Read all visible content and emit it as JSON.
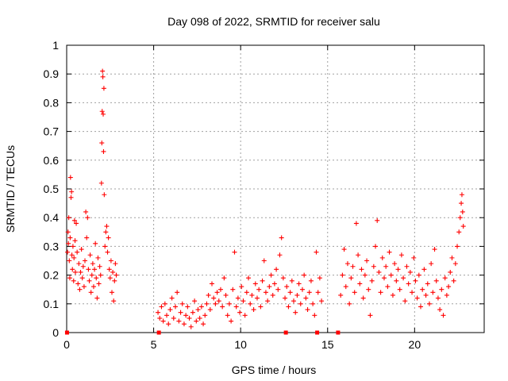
{
  "chart_data": {
    "type": "scatter",
    "title": "Day 098 of 2022, SRMTID for receiver salu",
    "xlabel": "GPS time / hours",
    "ylabel": "SRMTID / TECUs",
    "xlim": [
      0,
      24
    ],
    "ylim": [
      0,
      1
    ],
    "xticks": [
      0,
      5,
      10,
      15,
      20
    ],
    "xtick_labels": [
      "0",
      "5",
      "10",
      "15",
      "20"
    ],
    "yticks": [
      0,
      0.1,
      0.2,
      0.3,
      0.4,
      0.5,
      0.6,
      0.7,
      0.8,
      0.9,
      1
    ],
    "ytick_labels": [
      "0",
      "0.1",
      "0.2",
      "0.3",
      "0.4",
      "0.5",
      "0.6",
      "0.7",
      "0.8",
      "0.9",
      "1"
    ],
    "grid": true,
    "marker_color": "#ff0000",
    "series": [
      {
        "name": "SRMTID",
        "marker": "plus",
        "points": [
          [
            0.05,
            0.28
          ],
          [
            0.08,
            0.35
          ],
          [
            0.1,
            0.31
          ],
          [
            0.12,
            0.4
          ],
          [
            0.15,
            0.25
          ],
          [
            0.18,
            0.19
          ],
          [
            0.2,
            0.33
          ],
          [
            0.22,
            0.54
          ],
          [
            0.25,
            0.47
          ],
          [
            0.28,
            0.49
          ],
          [
            0.3,
            0.27
          ],
          [
            0.33,
            0.22
          ],
          [
            0.36,
            0.3
          ],
          [
            0.4,
            0.18
          ],
          [
            0.42,
            0.26
          ],
          [
            0.45,
            0.39
          ],
          [
            0.48,
            0.32
          ],
          [
            0.5,
            0.21
          ],
          [
            0.55,
            0.38
          ],
          [
            0.6,
            0.28
          ],
          [
            0.65,
            0.17
          ],
          [
            0.7,
            0.24
          ],
          [
            0.75,
            0.15
          ],
          [
            0.8,
            0.21
          ],
          [
            0.85,
            0.29
          ],
          [
            0.9,
            0.19
          ],
          [
            0.95,
            0.23
          ],
          [
            1.0,
            0.16
          ],
          [
            1.05,
            0.25
          ],
          [
            1.1,
            0.42
          ],
          [
            1.15,
            0.33
          ],
          [
            1.2,
            0.4
          ],
          [
            1.25,
            0.22
          ],
          [
            1.3,
            0.18
          ],
          [
            1.35,
            0.27
          ],
          [
            1.4,
            0.14
          ],
          [
            1.45,
            0.2
          ],
          [
            1.5,
            0.24
          ],
          [
            1.55,
            0.16
          ],
          [
            1.6,
            0.22
          ],
          [
            1.65,
            0.31
          ],
          [
            1.7,
            0.19
          ],
          [
            1.75,
            0.12
          ],
          [
            1.8,
            0.26
          ],
          [
            1.85,
            0.17
          ],
          [
            1.9,
            0.23
          ],
          [
            1.95,
            0.2
          ],
          [
            2.0,
            0.52
          ],
          [
            2.02,
            0.66
          ],
          [
            2.04,
            0.77
          ],
          [
            2.06,
            0.91
          ],
          [
            2.08,
            0.89
          ],
          [
            2.1,
            0.76
          ],
          [
            2.12,
            0.63
          ],
          [
            2.14,
            0.85
          ],
          [
            2.16,
            0.48
          ],
          [
            2.2,
            0.3
          ],
          [
            2.25,
            0.35
          ],
          [
            2.3,
            0.37
          ],
          [
            2.35,
            0.28
          ],
          [
            2.4,
            0.33
          ],
          [
            2.45,
            0.22
          ],
          [
            2.5,
            0.19
          ],
          [
            2.55,
            0.25
          ],
          [
            2.6,
            0.14
          ],
          [
            2.65,
            0.21
          ],
          [
            2.7,
            0.11
          ],
          [
            2.75,
            0.18
          ],
          [
            2.8,
            0.24
          ],
          [
            2.85,
            0.2
          ],
          [
            5.25,
            0.07
          ],
          [
            5.35,
            0.05
          ],
          [
            5.45,
            0.09
          ],
          [
            5.55,
            0.04
          ],
          [
            5.65,
            0.1
          ],
          [
            5.75,
            0.06
          ],
          [
            5.85,
            0.03
          ],
          [
            5.95,
            0.08
          ],
          [
            6.05,
            0.12
          ],
          [
            6.15,
            0.05
          ],
          [
            6.25,
            0.09
          ],
          [
            6.35,
            0.14
          ],
          [
            6.45,
            0.04
          ],
          [
            6.55,
            0.07
          ],
          [
            6.65,
            0.1
          ],
          [
            6.75,
            0.03
          ],
          [
            6.85,
            0.06
          ],
          [
            6.95,
            0.09
          ],
          [
            7.05,
            0.05
          ],
          [
            7.15,
            0.02
          ],
          [
            7.25,
            0.07
          ],
          [
            7.35,
            0.11
          ],
          [
            7.45,
            0.04
          ],
          [
            7.55,
            0.08
          ],
          [
            7.65,
            0.05
          ],
          [
            7.75,
            0.09
          ],
          [
            7.85,
            0.03
          ],
          [
            7.95,
            0.06
          ],
          [
            8.05,
            0.1
          ],
          [
            8.15,
            0.13
          ],
          [
            8.25,
            0.08
          ],
          [
            8.35,
            0.17
          ],
          [
            8.45,
            0.12
          ],
          [
            8.55,
            0.1
          ],
          [
            8.65,
            0.14
          ],
          [
            8.75,
            0.11
          ],
          [
            8.85,
            0.15
          ],
          [
            8.95,
            0.09
          ],
          [
            9.05,
            0.19
          ],
          [
            9.15,
            0.13
          ],
          [
            9.25,
            0.06
          ],
          [
            9.35,
            0.1
          ],
          [
            9.45,
            0.04
          ],
          [
            9.55,
            0.15
          ],
          [
            9.65,
            0.28
          ],
          [
            9.75,
            0.09
          ],
          [
            9.85,
            0.12
          ],
          [
            9.95,
            0.07
          ],
          [
            10.05,
            0.16
          ],
          [
            10.15,
            0.11
          ],
          [
            10.25,
            0.06
          ],
          [
            10.35,
            0.14
          ],
          [
            10.45,
            0.19
          ],
          [
            10.55,
            0.1
          ],
          [
            10.65,
            0.13
          ],
          [
            10.75,
            0.08
          ],
          [
            10.85,
            0.17
          ],
          [
            10.95,
            0.12
          ],
          [
            11.05,
            0.15
          ],
          [
            11.15,
            0.09
          ],
          [
            11.25,
            0.18
          ],
          [
            11.35,
            0.25
          ],
          [
            11.45,
            0.14
          ],
          [
            11.55,
            0.11
          ],
          [
            11.65,
            0.16
          ],
          [
            11.75,
            0.2
          ],
          [
            11.85,
            0.13
          ],
          [
            11.95,
            0.17
          ],
          [
            12.05,
            0.22
          ],
          [
            12.15,
            0.15
          ],
          [
            12.25,
            0.27
          ],
          [
            12.35,
            0.33
          ],
          [
            12.45,
            0.19
          ],
          [
            12.55,
            0.12
          ],
          [
            12.65,
            0.16
          ],
          [
            12.75,
            0.09
          ],
          [
            12.85,
            0.14
          ],
          [
            12.95,
            0.18
          ],
          [
            13.05,
            0.11
          ],
          [
            13.15,
            0.07
          ],
          [
            13.25,
            0.13
          ],
          [
            13.35,
            0.17
          ],
          [
            13.45,
            0.1
          ],
          [
            13.55,
            0.15
          ],
          [
            13.65,
            0.2
          ],
          [
            13.75,
            0.12
          ],
          [
            13.85,
            0.08
          ],
          [
            13.95,
            0.14
          ],
          [
            14.05,
            0.18
          ],
          [
            14.15,
            0.1
          ],
          [
            14.25,
            0.06
          ],
          [
            14.35,
            0.28
          ],
          [
            14.45,
            0.14
          ],
          [
            14.55,
            0.19
          ],
          [
            14.65,
            0.11
          ],
          [
            15.75,
            0.13
          ],
          [
            15.85,
            0.2
          ],
          [
            15.95,
            0.29
          ],
          [
            16.05,
            0.16
          ],
          [
            16.15,
            0.24
          ],
          [
            16.25,
            0.1
          ],
          [
            16.35,
            0.19
          ],
          [
            16.45,
            0.23
          ],
          [
            16.55,
            0.14
          ],
          [
            16.65,
            0.38
          ],
          [
            16.75,
            0.27
          ],
          [
            16.85,
            0.17
          ],
          [
            16.95,
            0.22
          ],
          [
            17.05,
            0.12
          ],
          [
            17.15,
            0.2
          ],
          [
            17.25,
            0.25
          ],
          [
            17.35,
            0.15
          ],
          [
            17.45,
            0.06
          ],
          [
            17.55,
            0.18
          ],
          [
            17.65,
            0.23
          ],
          [
            17.75,
            0.3
          ],
          [
            17.85,
            0.39
          ],
          [
            17.95,
            0.21
          ],
          [
            18.05,
            0.14
          ],
          [
            18.15,
            0.26
          ],
          [
            18.25,
            0.19
          ],
          [
            18.35,
            0.23
          ],
          [
            18.45,
            0.16
          ],
          [
            18.55,
            0.28
          ],
          [
            18.65,
            0.2
          ],
          [
            18.75,
            0.13
          ],
          [
            18.85,
            0.24
          ],
          [
            18.95,
            0.18
          ],
          [
            19.05,
            0.22
          ],
          [
            19.15,
            0.15
          ],
          [
            19.25,
            0.27
          ],
          [
            19.35,
            0.19
          ],
          [
            19.45,
            0.11
          ],
          [
            19.55,
            0.23
          ],
          [
            19.65,
            0.17
          ],
          [
            19.75,
            0.21
          ],
          [
            19.85,
            0.14
          ],
          [
            19.95,
            0.26
          ],
          [
            20.05,
            0.18
          ],
          [
            20.15,
            0.12
          ],
          [
            20.25,
            0.2
          ],
          [
            20.35,
            0.09
          ],
          [
            20.45,
            0.15
          ],
          [
            20.55,
            0.22
          ],
          [
            20.65,
            0.13
          ],
          [
            20.75,
            0.17
          ],
          [
            20.85,
            0.1
          ],
          [
            20.95,
            0.24
          ],
          [
            21.05,
            0.14
          ],
          [
            21.15,
            0.29
          ],
          [
            21.25,
            0.18
          ],
          [
            21.35,
            0.12
          ],
          [
            21.45,
            0.08
          ],
          [
            21.55,
            0.15
          ],
          [
            21.65,
            0.06
          ],
          [
            21.75,
            0.19
          ],
          [
            21.85,
            0.13
          ],
          [
            21.95,
            0.16
          ],
          [
            22.05,
            0.21
          ],
          [
            22.15,
            0.26
          ],
          [
            22.25,
            0.18
          ],
          [
            22.35,
            0.24
          ],
          [
            22.45,
            0.3
          ],
          [
            22.55,
            0.35
          ],
          [
            22.62,
            0.4
          ],
          [
            22.68,
            0.45
          ],
          [
            22.72,
            0.48
          ],
          [
            22.76,
            0.42
          ],
          [
            22.8,
            0.37
          ]
        ]
      },
      {
        "name": "zero markers",
        "marker": "square",
        "points": [
          [
            0.02,
            0
          ],
          [
            5.3,
            0
          ],
          [
            12.6,
            0
          ],
          [
            14.4,
            0
          ],
          [
            15.6,
            0
          ]
        ]
      }
    ]
  }
}
